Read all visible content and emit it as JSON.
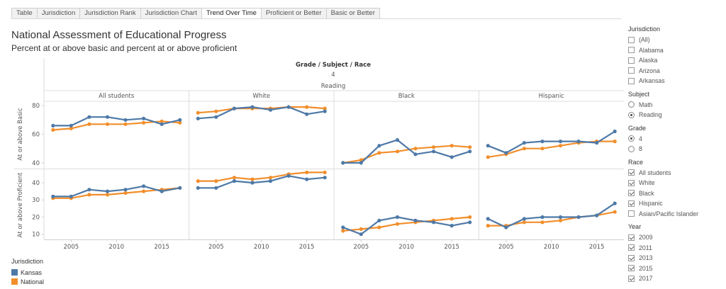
{
  "tabs": [
    {
      "label": "Table",
      "active": false
    },
    {
      "label": "Jurisdiction",
      "active": false
    },
    {
      "label": "Jurisdiction Rank",
      "active": false
    },
    {
      "label": "Jurisdiction Chart",
      "active": false
    },
    {
      "label": "Trend Over Time",
      "active": true
    },
    {
      "label": "Proficient or Better",
      "active": false
    },
    {
      "label": "Basic or Better",
      "active": false
    }
  ],
  "header": {
    "title": "National Assessment of Educational Progress",
    "subtitle": "Percent at or above basic and percent at or above proficient"
  },
  "chart_header": {
    "line1": "Grade / Subject / Race",
    "line2": "4",
    "line3": "Reading"
  },
  "legend": {
    "title": "Jurisdiction",
    "items": [
      {
        "label": "Kansas",
        "color": "#4e79a7"
      },
      {
        "label": "National",
        "color": "#f28e2b"
      }
    ]
  },
  "filters": {
    "jurisdiction": {
      "title": "Jurisdiction",
      "options": [
        {
          "label": "(All)",
          "checked": false
        },
        {
          "label": "Alabama",
          "checked": false
        },
        {
          "label": "Alaska",
          "checked": false
        },
        {
          "label": "Arizona",
          "checked": false
        },
        {
          "label": "Arkansas",
          "checked": false
        }
      ]
    },
    "subject": {
      "title": "Subject",
      "options": [
        {
          "label": "Math",
          "checked": false
        },
        {
          "label": "Reading",
          "checked": true
        }
      ]
    },
    "grade": {
      "title": "Grade",
      "options": [
        {
          "label": "4",
          "checked": true
        },
        {
          "label": "8",
          "checked": false
        }
      ]
    },
    "race": {
      "title": "Race",
      "options": [
        {
          "label": "All students",
          "checked": true
        },
        {
          "label": "White",
          "checked": true
        },
        {
          "label": "Black",
          "checked": true
        },
        {
          "label": "Hispanic",
          "checked": true
        },
        {
          "label": "Asian/Pacific Islander",
          "checked": false
        }
      ]
    },
    "year": {
      "title": "Year",
      "options": [
        {
          "label": "2009",
          "checked": true
        },
        {
          "label": "2011",
          "checked": true
        },
        {
          "label": "2013",
          "checked": true
        },
        {
          "label": "2015",
          "checked": true
        },
        {
          "label": "2017",
          "checked": true
        }
      ]
    }
  },
  "chart_data": {
    "type": "line",
    "columns": [
      "All students",
      "White",
      "Black",
      "Hispanic"
    ],
    "rows": [
      {
        "label": "At or above Basic",
        "ticks": [
          40,
          60,
          80
        ],
        "ylim": [
          37,
          83
        ]
      },
      {
        "label": "At or above Proficient",
        "ticks": [
          10,
          20,
          30,
          40
        ],
        "ylim": [
          7,
          47
        ]
      }
    ],
    "x": [
      2003,
      2005,
      2007,
      2009,
      2011,
      2013,
      2015,
      2017
    ],
    "xticks": [
      2005,
      2010,
      2015
    ],
    "xlim": [
      2002,
      2018
    ],
    "series": [
      {
        "name": "Kansas",
        "color": "#4e79a7"
      },
      {
        "name": "National",
        "color": "#f28e2b"
      }
    ],
    "values": {
      "Kansas": [
        [
          [
            66,
            66,
            72,
            72,
            70,
            71,
            67,
            70
          ],
          [
            71,
            72,
            78,
            79,
            77,
            79,
            74,
            76
          ],
          [
            40,
            40,
            52,
            56,
            46,
            48,
            44,
            48
          ],
          [
            52,
            47,
            54,
            55,
            55,
            55,
            54,
            62
          ]
        ],
        [
          [
            32,
            32,
            36,
            35,
            36,
            38,
            35,
            37
          ],
          [
            37,
            37,
            41,
            40,
            41,
            44,
            42,
            43
          ],
          [
            14,
            10,
            18,
            20,
            18,
            17,
            15,
            17
          ],
          [
            19,
            14,
            19,
            20,
            20,
            20,
            21,
            28
          ]
        ]
      ],
      "National": [
        [
          [
            63,
            64,
            67,
            67,
            67,
            68,
            69,
            68
          ],
          [
            75,
            76,
            78,
            78,
            78,
            79,
            79,
            78
          ],
          [
            40,
            42,
            47,
            48,
            50,
            51,
            52,
            51
          ],
          [
            44,
            46,
            50,
            50,
            52,
            54,
            55,
            55
          ]
        ],
        [
          [
            31,
            31,
            33,
            33,
            34,
            35,
            36,
            37
          ],
          [
            41,
            41,
            43,
            42,
            43,
            45,
            46,
            46
          ],
          [
            12,
            13,
            14,
            16,
            17,
            18,
            19,
            20
          ],
          [
            15,
            15,
            17,
            17,
            18,
            20,
            21,
            23
          ]
        ]
      ]
    }
  }
}
